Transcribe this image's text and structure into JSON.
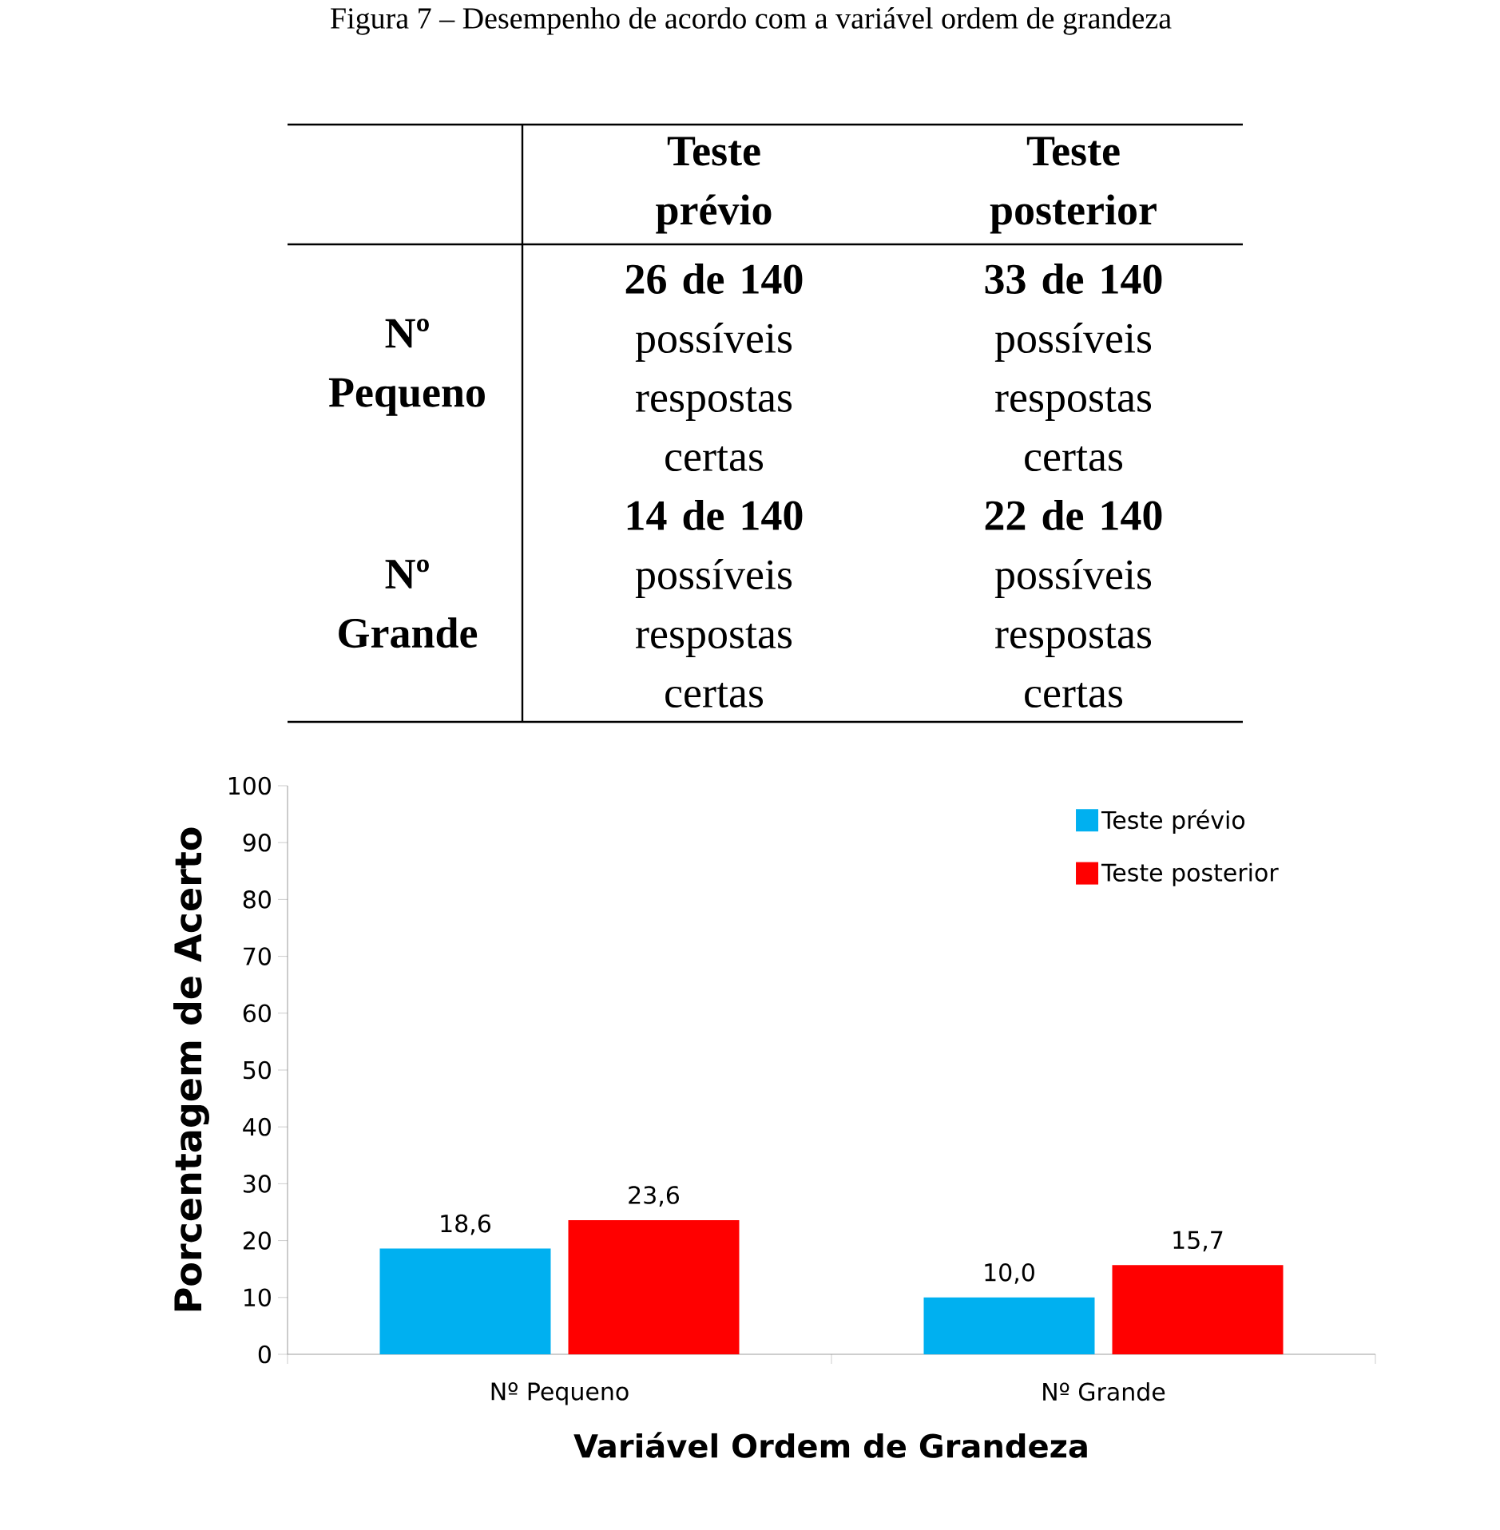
{
  "chart_data": {
    "type": "bar",
    "title": "Figura 7 – Desempenho de acordo com a variável ordem de grandeza",
    "xlabel": "Variável Ordem de Grandeza",
    "ylabel": "Porcentagem de Acerto",
    "categories": [
      "Nº Pequeno",
      "Nº Grande"
    ],
    "series": [
      {
        "name": "Teste prévio",
        "color": "#00b0f0",
        "values": [
          18.6,
          10.0
        ],
        "value_labels": [
          "18,6",
          "10,0"
        ]
      },
      {
        "name": "Teste posterior",
        "color": "#ff0000",
        "values": [
          23.6,
          15.7
        ],
        "value_labels": [
          "23,6",
          "15,7"
        ]
      }
    ],
    "ylim": [
      0,
      100
    ],
    "yticks": [
      0,
      10,
      20,
      30,
      40,
      50,
      60,
      70,
      80,
      90,
      100
    ],
    "grid": false,
    "legend": "top right",
    "annotations": [
      "Teste prévio",
      "Teste posterior",
      "Nº Pequeno",
      "Nº Grande",
      "**26 de 140** possíveis respostas certas",
      "**33 de 140** possíveis respostas certas",
      "**14 de 140** possíveis respostas certas",
      "**22 de 140** possíveis respostas certas"
    ]
  }
}
